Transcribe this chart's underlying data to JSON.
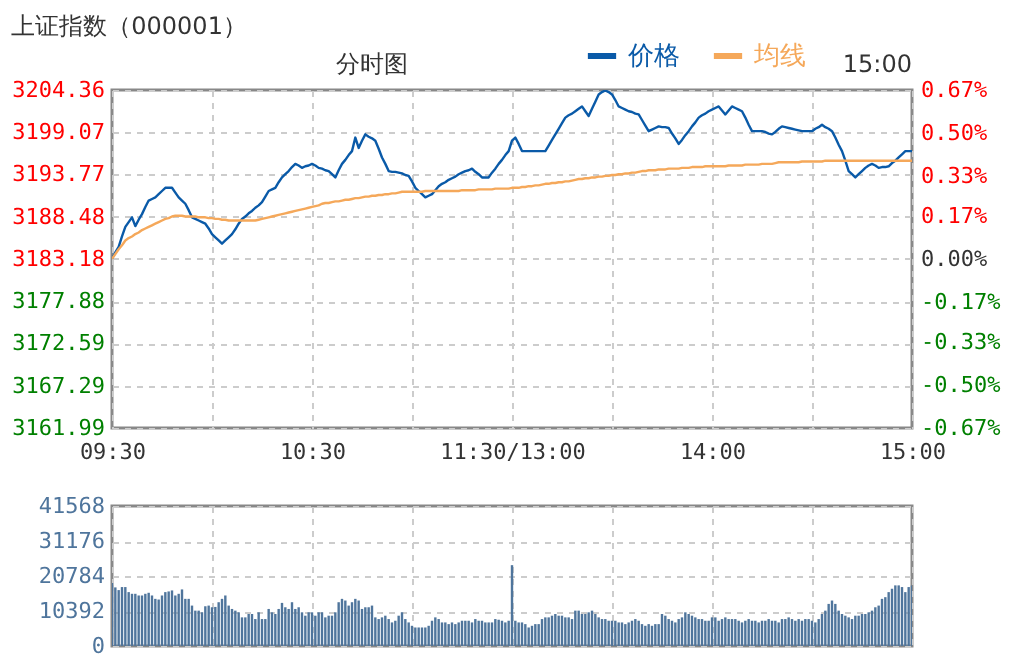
{
  "chart_data": [
    {
      "type": "line",
      "title": "上证指数（000001）",
      "annotations": [
        "分时图",
        "15:00"
      ],
      "legend": "top",
      "grid": true,
      "categories": [
        "09:30",
        null,
        null,
        null,
        null,
        null,
        null,
        null,
        null,
        null,
        null,
        null,
        null,
        null,
        null,
        null,
        null,
        null,
        null,
        null,
        null,
        null,
        null,
        null,
        null,
        null,
        null,
        null,
        null,
        null,
        null,
        null,
        null,
        null,
        null,
        null,
        null,
        null,
        null,
        null,
        null,
        null,
        null,
        null,
        null,
        null,
        null,
        null,
        null,
        null,
        null,
        null,
        null,
        null,
        null,
        null,
        null,
        null,
        null,
        null,
        "10:30",
        null,
        null,
        null,
        null,
        null,
        null,
        null,
        null,
        null,
        null,
        null,
        null,
        null,
        null,
        null,
        null,
        null,
        null,
        null,
        null,
        null,
        null,
        null,
        null,
        null,
        null,
        null,
        null,
        null,
        null,
        null,
        null,
        null,
        null,
        null,
        null,
        null,
        null,
        null,
        null,
        null,
        null,
        null,
        null,
        null,
        null,
        null,
        null,
        null,
        null,
        null,
        null,
        null,
        null,
        null,
        null,
        null,
        null,
        null,
        "11:30/13:00",
        null,
        null,
        null,
        null,
        null,
        null,
        null,
        null,
        null,
        null,
        null,
        null,
        null,
        null,
        null,
        null,
        null,
        null,
        null,
        null,
        null,
        null,
        null,
        null,
        null,
        null,
        null,
        null,
        null,
        null,
        null,
        null,
        null,
        null,
        null,
        null,
        null,
        null,
        null,
        null,
        null,
        null,
        null,
        null,
        null,
        null,
        null,
        null,
        null,
        null,
        null,
        null,
        null,
        null,
        null,
        null,
        null,
        null,
        null,
        "14:00",
        null,
        null,
        null,
        null,
        null,
        null,
        null,
        null,
        null,
        null,
        null,
        null,
        null,
        null,
        null,
        null,
        null,
        null,
        null,
        null,
        null,
        null,
        null,
        null,
        null,
        null,
        null,
        null,
        null,
        null,
        null,
        null,
        null,
        null,
        null,
        null,
        null,
        null,
        null,
        null,
        null,
        null,
        null,
        null,
        null,
        null,
        null,
        null,
        null,
        null,
        null,
        null,
        null,
        null,
        null,
        null,
        null,
        null,
        null,
        "15:00"
      ],
      "ylim": [
        3161.99,
        3204.36
      ],
      "yticks": [
        3161.99,
        3167.29,
        3172.59,
        3177.88,
        3183.18,
        3188.48,
        3193.77,
        3199.07,
        3204.36
      ],
      "y2lim": [
        -0.67,
        0.67
      ],
      "y2ticks": [
        {
          "value": -0.67,
          "label": "-0.67%"
        },
        {
          "value": -0.5,
          "label": "-0.50%"
        },
        {
          "value": -0.33,
          "label": "-0.33%"
        },
        {
          "value": -0.17,
          "label": "-0.17%"
        },
        {
          "value": 0,
          "label": "0.00%"
        },
        {
          "value": 0.17,
          "label": "0.17%"
        },
        {
          "value": 0.33,
          "label": "0.33%"
        },
        {
          "value": 0.5,
          "label": "0.50%"
        },
        {
          "value": 0.67,
          "label": "0.67%"
        }
      ],
      "series": [
        {
          "name": "价格",
          "color": "#0a5aa8",
          "values": [
            3183.2,
            3184.0,
            3184.7,
            3186.0,
            3187.2,
            3187.8,
            3188.4,
            3187.3,
            3188.1,
            3188.8,
            3189.7,
            3190.5,
            3190.7,
            3190.9,
            3191.3,
            3191.7,
            3192.1,
            3192.1,
            3192.1,
            3191.5,
            3190.9,
            3190.5,
            3190.1,
            3189.3,
            3188.4,
            3188.2,
            3188.0,
            3187.8,
            3187.6,
            3187.0,
            3186.3,
            3185.9,
            3185.5,
            3185.1,
            3185.5,
            3185.9,
            3186.3,
            3186.9,
            3187.6,
            3188.2,
            3188.5,
            3188.9,
            3189.2,
            3189.6,
            3189.9,
            3190.3,
            3191.0,
            3191.7,
            3191.9,
            3192.1,
            3192.8,
            3193.4,
            3193.8,
            3194.2,
            3194.7,
            3195.1,
            3194.9,
            3194.6,
            3194.8,
            3194.9,
            3195.1,
            3194.9,
            3194.6,
            3194.5,
            3194.3,
            3194.2,
            3193.8,
            3193.4,
            3194.3,
            3195.1,
            3195.6,
            3196.2,
            3196.7,
            3198.4,
            3197.1,
            3198.0,
            3198.8,
            3198.5,
            3198.3,
            3198.0,
            3197.0,
            3195.9,
            3195.1,
            3194.2,
            3194.1,
            3194.1,
            3194.0,
            3193.9,
            3193.7,
            3193.6,
            3192.9,
            3192.1,
            3191.7,
            3191.3,
            3190.9,
            3191.1,
            3191.3,
            3191.8,
            3192.3,
            3192.6,
            3192.8,
            3193.1,
            3193.3,
            3193.5,
            3193.8,
            3194.0,
            3194.2,
            3194.3,
            3194.5,
            3194.1,
            3193.8,
            3193.4,
            3193.4,
            3193.4,
            3194.0,
            3194.5,
            3195.1,
            3195.6,
            3196.2,
            3196.7,
            3198.0,
            3198.4,
            3197.6,
            3196.7,
            3196.7,
            3196.7,
            3196.7,
            3196.7,
            3196.7,
            3196.7,
            3196.7,
            3197.4,
            3198.1,
            3198.8,
            3199.5,
            3200.2,
            3200.9,
            3201.2,
            3201.4,
            3201.7,
            3202.0,
            3202.3,
            3201.7,
            3201.1,
            3202.0,
            3202.9,
            3203.8,
            3204.1,
            3204.3,
            3204.1,
            3203.8,
            3203.1,
            3202.3,
            3202.1,
            3201.9,
            3201.7,
            3201.6,
            3201.4,
            3201.3,
            3200.6,
            3199.9,
            3199.2,
            3199.4,
            3199.6,
            3199.8,
            3199.7,
            3199.7,
            3199.6,
            3198.9,
            3198.3,
            3197.6,
            3198.1,
            3198.7,
            3199.2,
            3199.8,
            3200.3,
            3200.9,
            3201.2,
            3201.4,
            3201.7,
            3201.9,
            3202.1,
            3202.3,
            3201.8,
            3201.3,
            3201.8,
            3202.3,
            3202.1,
            3201.9,
            3201.7,
            3200.9,
            3200.0,
            3199.2,
            3199.2,
            3199.2,
            3199.2,
            3199.1,
            3198.9,
            3198.8,
            3199.1,
            3199.5,
            3199.8,
            3199.7,
            3199.6,
            3199.5,
            3199.4,
            3199.3,
            3199.2,
            3199.2,
            3199.2,
            3199.2,
            3199.5,
            3199.7,
            3200.0,
            3199.7,
            3199.5,
            3199.2,
            3198.4,
            3197.5,
            3196.7,
            3195.5,
            3194.2,
            3193.8,
            3193.4,
            3193.8,
            3194.2,
            3194.6,
            3194.9,
            3195.1,
            3194.9,
            3194.6,
            3194.7,
            3194.7,
            3194.8,
            3195.2,
            3195.5,
            3195.9,
            3196.3,
            3196.7,
            3196.7,
            3196.7
          ]
        },
        {
          "name": "均线",
          "color": "#f5a85a",
          "values": [
            3183.2,
            3183.8,
            3184.4,
            3184.9,
            3185.5,
            3185.8,
            3186.0,
            3186.3,
            3186.5,
            3186.8,
            3187.0,
            3187.2,
            3187.4,
            3187.6,
            3187.8,
            3188.0,
            3188.2,
            3188.3,
            3188.5,
            3188.6,
            3188.6,
            3188.6,
            3188.5,
            3188.5,
            3188.5,
            3188.5,
            3188.4,
            3188.4,
            3188.4,
            3188.3,
            3188.3,
            3188.2,
            3188.2,
            3188.1,
            3188.1,
            3188.0,
            3188.0,
            3188.0,
            3188.0,
            3188.0,
            3188.0,
            3188.0,
            3188.0,
            3188.0,
            3188.1,
            3188.2,
            3188.3,
            3188.4,
            3188.5,
            3188.6,
            3188.7,
            3188.8,
            3188.9,
            3189.0,
            3189.1,
            3189.2,
            3189.3,
            3189.4,
            3189.5,
            3189.6,
            3189.7,
            3189.8,
            3189.9,
            3190.1,
            3190.2,
            3190.2,
            3190.3,
            3190.4,
            3190.4,
            3190.5,
            3190.6,
            3190.6,
            3190.7,
            3190.8,
            3190.8,
            3190.9,
            3191.0,
            3191.0,
            3191.1,
            3191.1,
            3191.2,
            3191.2,
            3191.3,
            3191.3,
            3191.4,
            3191.4,
            3191.5,
            3191.6,
            3191.6,
            3191.6,
            3191.6,
            3191.6,
            3191.6,
            3191.6,
            3191.7,
            3191.7,
            3191.7,
            3191.7,
            3191.7,
            3191.7,
            3191.7,
            3191.7,
            3191.7,
            3191.7,
            3191.7,
            3191.8,
            3191.8,
            3191.8,
            3191.8,
            3191.8,
            3191.9,
            3191.9,
            3191.9,
            3191.9,
            3191.9,
            3192.0,
            3192.0,
            3192.0,
            3192.0,
            3192.0,
            3192.1,
            3192.1,
            3192.1,
            3192.2,
            3192.2,
            3192.3,
            3192.3,
            3192.4,
            3192.4,
            3192.5,
            3192.6,
            3192.6,
            3192.7,
            3192.7,
            3192.8,
            3192.8,
            3192.9,
            3192.9,
            3193.0,
            3193.1,
            3193.2,
            3193.2,
            3193.3,
            3193.3,
            3193.4,
            3193.4,
            3193.5,
            3193.5,
            3193.6,
            3193.6,
            3193.7,
            3193.7,
            3193.8,
            3193.8,
            3193.9,
            3193.9,
            3194.0,
            3194.0,
            3194.1,
            3194.2,
            3194.2,
            3194.3,
            3194.3,
            3194.3,
            3194.4,
            3194.4,
            3194.4,
            3194.5,
            3194.5,
            3194.5,
            3194.5,
            3194.6,
            3194.6,
            3194.6,
            3194.7,
            3194.7,
            3194.7,
            3194.7,
            3194.8,
            3194.8,
            3194.8,
            3194.8,
            3194.8,
            3194.8,
            3194.8,
            3194.9,
            3194.9,
            3194.9,
            3194.9,
            3194.9,
            3195.0,
            3195.0,
            3195.0,
            3195.0,
            3195.0,
            3195.1,
            3195.1,
            3195.1,
            3195.1,
            3195.2,
            3195.3,
            3195.3,
            3195.3,
            3195.3,
            3195.3,
            3195.3,
            3195.3,
            3195.4,
            3195.4,
            3195.4,
            3195.4,
            3195.4,
            3195.4,
            3195.4,
            3195.5,
            3195.5,
            3195.5,
            3195.5,
            3195.5,
            3195.5,
            3195.5,
            3195.5,
            3195.5,
            3195.5,
            3195.5,
            3195.5,
            3195.5,
            3195.5,
            3195.5,
            3195.5,
            3195.5,
            3195.5,
            3195.5,
            3195.5,
            3195.5,
            3195.5,
            3195.5,
            3195.5,
            3195.5,
            3195.5,
            3195.5
          ]
        }
      ]
    },
    {
      "type": "bar",
      "color": "#4f759c",
      "grid": true,
      "tick_labels": "y",
      "categories": [
        null,
        null,
        null,
        null,
        null,
        null,
        null,
        null,
        null,
        null,
        null,
        null,
        null,
        null,
        null,
        null,
        null,
        null,
        null,
        null,
        null,
        null,
        null,
        null,
        null,
        null,
        null,
        null,
        null,
        null,
        null,
        null,
        null,
        null,
        null,
        null,
        null,
        null,
        null,
        null,
        null,
        null,
        null,
        null,
        null,
        null,
        null,
        null,
        null,
        null,
        null,
        null,
        null,
        null,
        null,
        null,
        null,
        null,
        null,
        null,
        null,
        null,
        null,
        null,
        null,
        null,
        null,
        null,
        null,
        null,
        null,
        null,
        null,
        null,
        null,
        null,
        null,
        null,
        null,
        null,
        null,
        null,
        null,
        null,
        null,
        null,
        null,
        null,
        null,
        null,
        null,
        null,
        null,
        null,
        null,
        null,
        null,
        null,
        null,
        null,
        null,
        null,
        null,
        null,
        null,
        null,
        null,
        null,
        null,
        null,
        null,
        null,
        null,
        null,
        null,
        null,
        null,
        null,
        null,
        null,
        null,
        null,
        null,
        null,
        null,
        null,
        null,
        null,
        null,
        null,
        null,
        null,
        null,
        null,
        null,
        null,
        null,
        null,
        null,
        null,
        null,
        null,
        null,
        null,
        null,
        null,
        null,
        null,
        null,
        null,
        null,
        null,
        null,
        null,
        null,
        null,
        null,
        null,
        null,
        null,
        null,
        null,
        null,
        null,
        null,
        null,
        null,
        null,
        null,
        null,
        null,
        null,
        null,
        null,
        null,
        null,
        null,
        null,
        null,
        null,
        null,
        null,
        null,
        null,
        null,
        null,
        null,
        null,
        null,
        null,
        null,
        null,
        null,
        null,
        null,
        null,
        null,
        null,
        null,
        null,
        null,
        null,
        null,
        null,
        null,
        null,
        null,
        null,
        null,
        null,
        null,
        null,
        null,
        null,
        null,
        null,
        null,
        null,
        null,
        null,
        null,
        null,
        null,
        null,
        null,
        null,
        null,
        null,
        null,
        null,
        null,
        null,
        null,
        null,
        null,
        null,
        null,
        null,
        null,
        null,
        null
      ],
      "ylim": [
        0,
        41568
      ],
      "yticks": [
        0,
        10392,
        20784,
        31176,
        41568
      ],
      "values": [
        18700,
        17400,
        16600,
        17500,
        17500,
        16000,
        15500,
        15500,
        15000,
        15000,
        15500,
        15800,
        15000,
        14000,
        13800,
        15000,
        16000,
        16200,
        16500,
        15000,
        15500,
        16800,
        14000,
        14000,
        12000,
        10500,
        10500,
        10000,
        11800,
        12000,
        11500,
        11600,
        13000,
        14000,
        15000,
        12000,
        11000,
        10500,
        10000,
        8500,
        8500,
        9500,
        9500,
        8000,
        10000,
        8000,
        8000,
        11000,
        10000,
        9500,
        11000,
        12800,
        11500,
        11000,
        13000,
        11000,
        11500,
        10000,
        9000,
        10000,
        10000,
        9000,
        10000,
        10000,
        8500,
        9000,
        9000,
        10000,
        13000,
        14000,
        13500,
        12000,
        13000,
        14000,
        13500,
        11000,
        11500,
        11500,
        12000,
        8500,
        8000,
        8500,
        9000,
        8000,
        7000,
        7500,
        9000,
        10000,
        8000,
        7000,
        6000,
        5500,
        5500,
        5500,
        5500,
        6000,
        7500,
        8500,
        8000,
        7000,
        7000,
        6500,
        7000,
        6500,
        7000,
        7500,
        7500,
        7500,
        7000,
        8000,
        7500,
        7500,
        7000,
        7000,
        7000,
        8000,
        7800,
        7500,
        7000,
        7500,
        24000,
        7500,
        7000,
        7000,
        6500,
        5500,
        6000,
        6500,
        6500,
        8000,
        8500,
        8500,
        9000,
        9500,
        9000,
        9000,
        8500,
        8500,
        8000,
        10500,
        10500,
        9500,
        9500,
        10000,
        10500,
        9500,
        8500,
        8000,
        8000,
        7500,
        7500,
        7500,
        7000,
        7000,
        6500,
        7000,
        7500,
        8000,
        7500,
        6500,
        6000,
        6500,
        6000,
        6500,
        6500,
        9500,
        9000,
        8000,
        7500,
        7000,
        8000,
        8500,
        10000,
        9500,
        9000,
        8500,
        8000,
        8000,
        7500,
        7500,
        8500,
        8500,
        7500,
        8000,
        8500,
        8000,
        8000,
        8000,
        7500,
        7000,
        7500,
        8000,
        7500,
        7500,
        7000,
        7500,
        7500,
        8000,
        7500,
        7500,
        7000,
        8000,
        8000,
        8500,
        8000,
        7500,
        8000,
        7500,
        8000,
        8000,
        7500,
        7000,
        8000,
        9500,
        10500,
        12500,
        13500,
        12500,
        10500,
        9500,
        9000,
        8500,
        8000,
        9000,
        9000,
        9500,
        9500,
        10000,
        10500,
        11500,
        12000,
        14000,
        14500,
        16000,
        17000,
        18000,
        18000,
        17500,
        16000,
        17500,
        18000
      ]
    }
  ]
}
